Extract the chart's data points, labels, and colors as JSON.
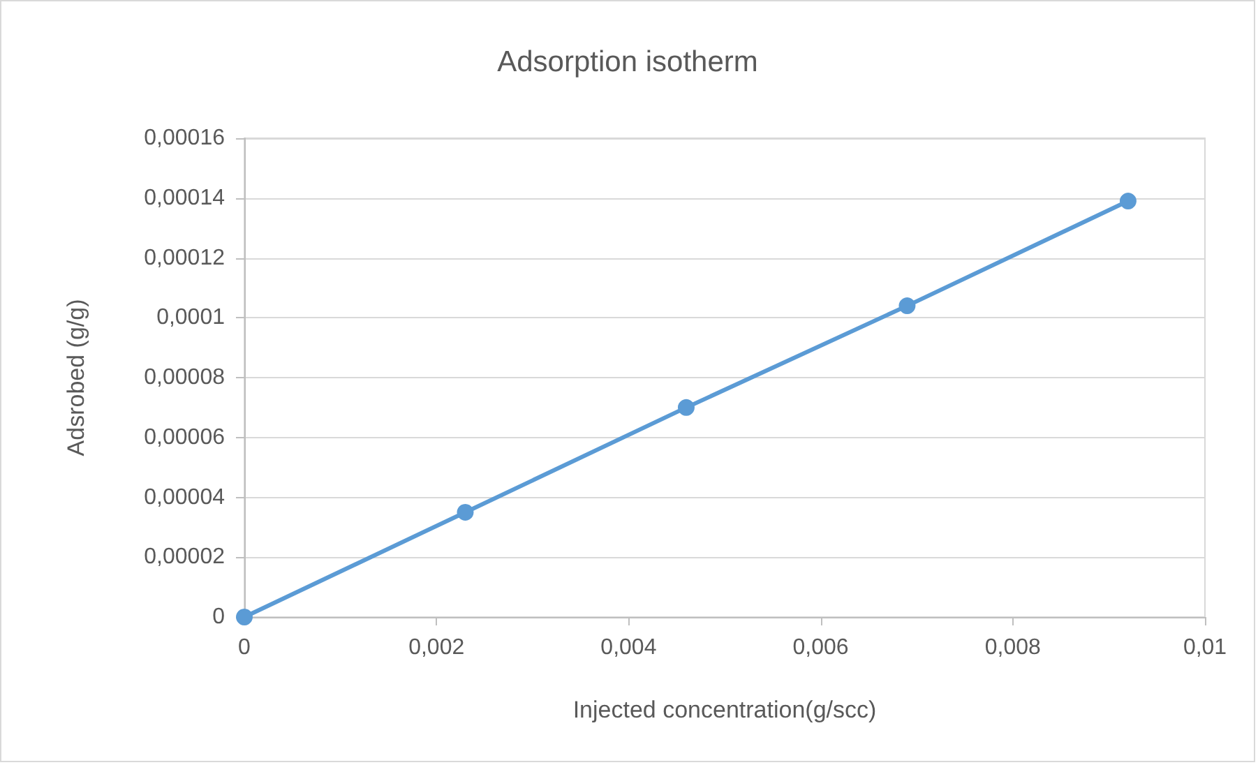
{
  "chart_data": {
    "type": "line",
    "title": "Adsorption isotherm",
    "xlabel": "Injected concentration(g/scc)",
    "ylabel": "Adsrobed (g/g)",
    "x": [
      0,
      0.0023,
      0.0046,
      0.0069,
      0.0092
    ],
    "series": [
      {
        "color": "#5b9bd5",
        "values": [
          0,
          3.5e-05,
          7e-05,
          0.000104,
          0.000139
        ]
      }
    ],
    "xlim": [
      0,
      0.01
    ],
    "xticks": [
      {
        "value": 0,
        "label": "0"
      },
      {
        "value": 0.002,
        "label": "0,002"
      },
      {
        "value": 0.004,
        "label": "0,004"
      },
      {
        "value": 0.006,
        "label": "0,006"
      },
      {
        "value": 0.008,
        "label": "0,008"
      },
      {
        "value": 0.01,
        "label": "0,01"
      }
    ],
    "ylim": [
      0,
      0.00016
    ],
    "yticks": [
      {
        "value": 0,
        "label": "0"
      },
      {
        "value": 2e-05,
        "label": "0,00002"
      },
      {
        "value": 4e-05,
        "label": "0,00004"
      },
      {
        "value": 6e-05,
        "label": "0,00006"
      },
      {
        "value": 8e-05,
        "label": "0,00008"
      },
      {
        "value": 0.0001,
        "label": "0,0001"
      },
      {
        "value": 0.00012,
        "label": "0,00012"
      },
      {
        "value": 0.00014,
        "label": "0,00014"
      },
      {
        "value": 0.00016,
        "label": "0,00016"
      }
    ],
    "grid": "y",
    "marker": "circle",
    "line_style": "solid"
  }
}
